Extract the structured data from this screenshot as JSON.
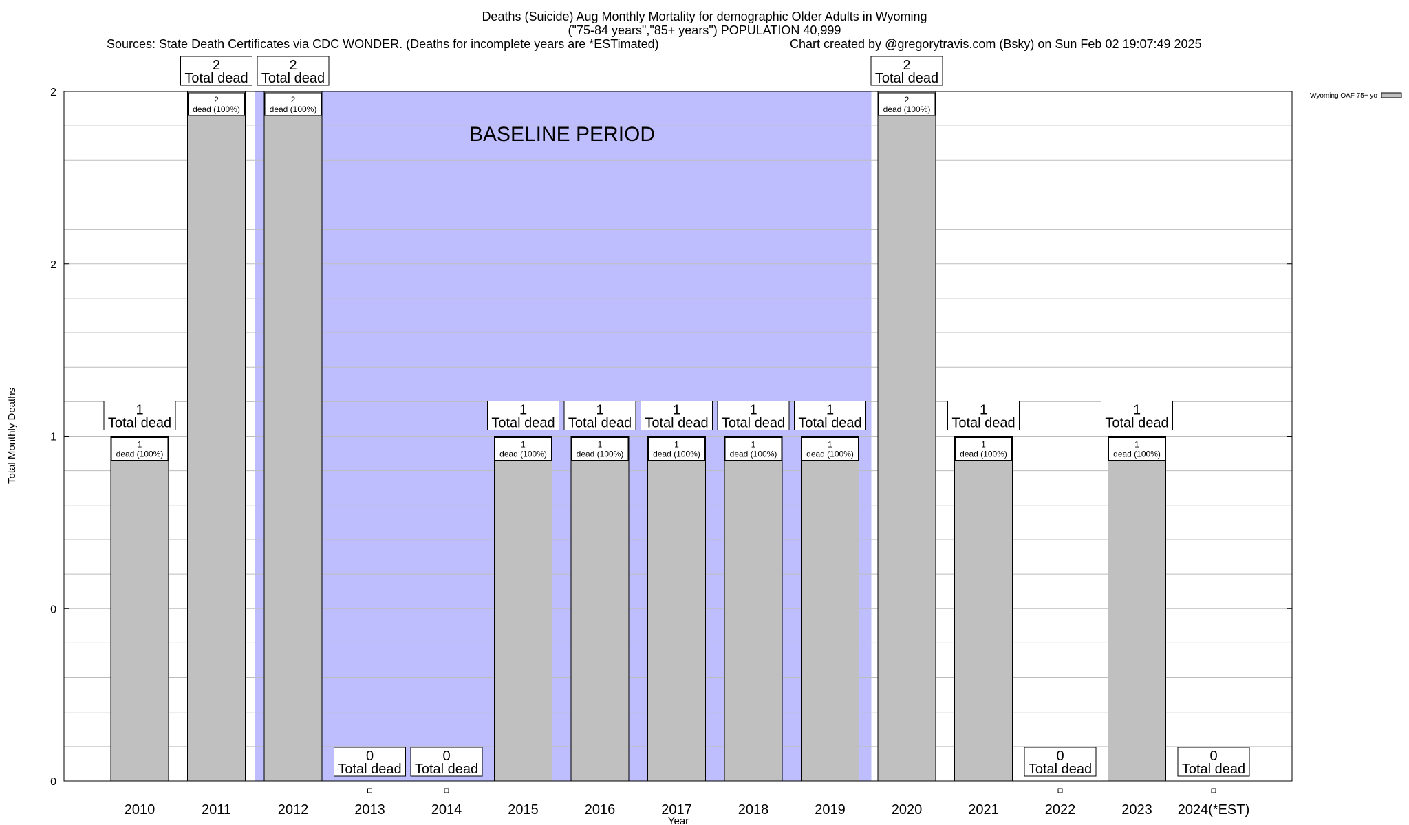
{
  "header": {
    "title": "Deaths (Suicide) Aug Monthly Mortality for demographic Older Adults in Wyoming",
    "subtitle": "(\"75-84 years\",\"85+ years\") POPULATION 40,999",
    "sources": "Sources: State Death Certificates via CDC WONDER. (Deaths for incomplete years are *ESTimated)",
    "credit": "Chart created by @gregorytravis.com (Bsky) on Sun Feb 02 19:07:49 2025"
  },
  "chart_data": {
    "type": "bar",
    "xlabel": "Year",
    "ylabel": "Total Monthly Deaths",
    "categories": [
      "2010",
      "2011",
      "2012",
      "2013",
      "2014",
      "2015",
      "2016",
      "2017",
      "2018",
      "2019",
      "2020",
      "2021",
      "2022",
      "2023",
      "2024(*EST)"
    ],
    "series": [
      {
        "name": "Wyoming OAF 75+ yo",
        "values": [
          1,
          2,
          2,
          0,
          0,
          1,
          1,
          1,
          1,
          1,
          2,
          1,
          0,
          1,
          0
        ],
        "color": "#c0c0c0"
      }
    ],
    "yticks": [
      "0",
      "0",
      "1",
      "2",
      "2"
    ],
    "ylim": [
      0,
      2
    ],
    "grid": true,
    "legend": "top-right",
    "total_label": "Total dead",
    "bar_label_suffix": "dead (100%)",
    "baseline": {
      "label": "BASELINE PERIOD",
      "from": "2012",
      "to": "2019",
      "color": "#bebefe"
    }
  }
}
